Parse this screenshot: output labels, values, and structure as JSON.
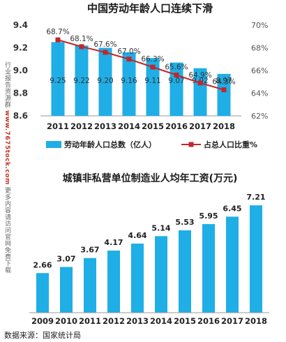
{
  "side_note": {
    "prefix": "行业报告资源群",
    "url": "www.7675tock.com",
    "suffix": "更多内容请访问官网免费下载"
  },
  "source_text": "数据来源：国家统计局",
  "colors": {
    "bar": "#1faee6",
    "line": "#c0272d",
    "title": "#1a1a1a",
    "axis_text": "#333333"
  },
  "chart_data": [
    {
      "type": "bar",
      "title": "中国劳动年龄人口连续下滑",
      "categories": [
        "2011",
        "2012",
        "2013",
        "2014",
        "2015",
        "2016",
        "2017",
        "2018"
      ],
      "series": [
        {
          "name": "劳动年龄人口总数（亿人）",
          "type": "bar",
          "axis": "left",
          "values": [
            9.25,
            9.22,
            9.2,
            9.16,
            9.11,
            9.07,
            9.02,
            8.97
          ],
          "labels": [
            "9.25",
            "9.22",
            "9.20",
            "9.16",
            "9.11",
            "9.07",
            "9.02",
            "8.97"
          ]
        },
        {
          "name": "占总人口比重%",
          "type": "line",
          "axis": "right",
          "values": [
            68.7,
            68.1,
            67.6,
            67.0,
            66.3,
            65.6,
            64.9,
            64.3
          ],
          "labels": [
            "68.7%",
            "68.1%",
            "67.6%",
            "67.0%",
            "66.3%",
            "65.6%",
            "64.9%",
            "64.3%"
          ]
        }
      ],
      "ylim_left": [
        8.6,
        9.4
      ],
      "yticks_left": [
        "8.6",
        "8.8",
        "9.0",
        "9.2",
        "9.4"
      ],
      "ylim_right": [
        62,
        70
      ],
      "yticks_right": [
        "62%",
        "64%",
        "66%",
        "68%",
        "70%"
      ],
      "legend_position": "bottom"
    },
    {
      "type": "bar",
      "title": "城镇非私营单位制造业人均年工资(万元)",
      "categories": [
        "2009",
        "2010",
        "2011",
        "2012",
        "2013",
        "2014",
        "2015",
        "2016",
        "2017",
        "2018"
      ],
      "values": [
        2.66,
        3.07,
        3.67,
        4.17,
        4.64,
        5.14,
        5.53,
        5.95,
        6.45,
        7.21
      ],
      "labels": [
        "2.66",
        "3.07",
        "3.67",
        "4.17",
        "4.64",
        "5.14",
        "5.53",
        "5.95",
        "6.45",
        "7.21"
      ],
      "ylim": [
        0,
        7.5
      ]
    }
  ]
}
